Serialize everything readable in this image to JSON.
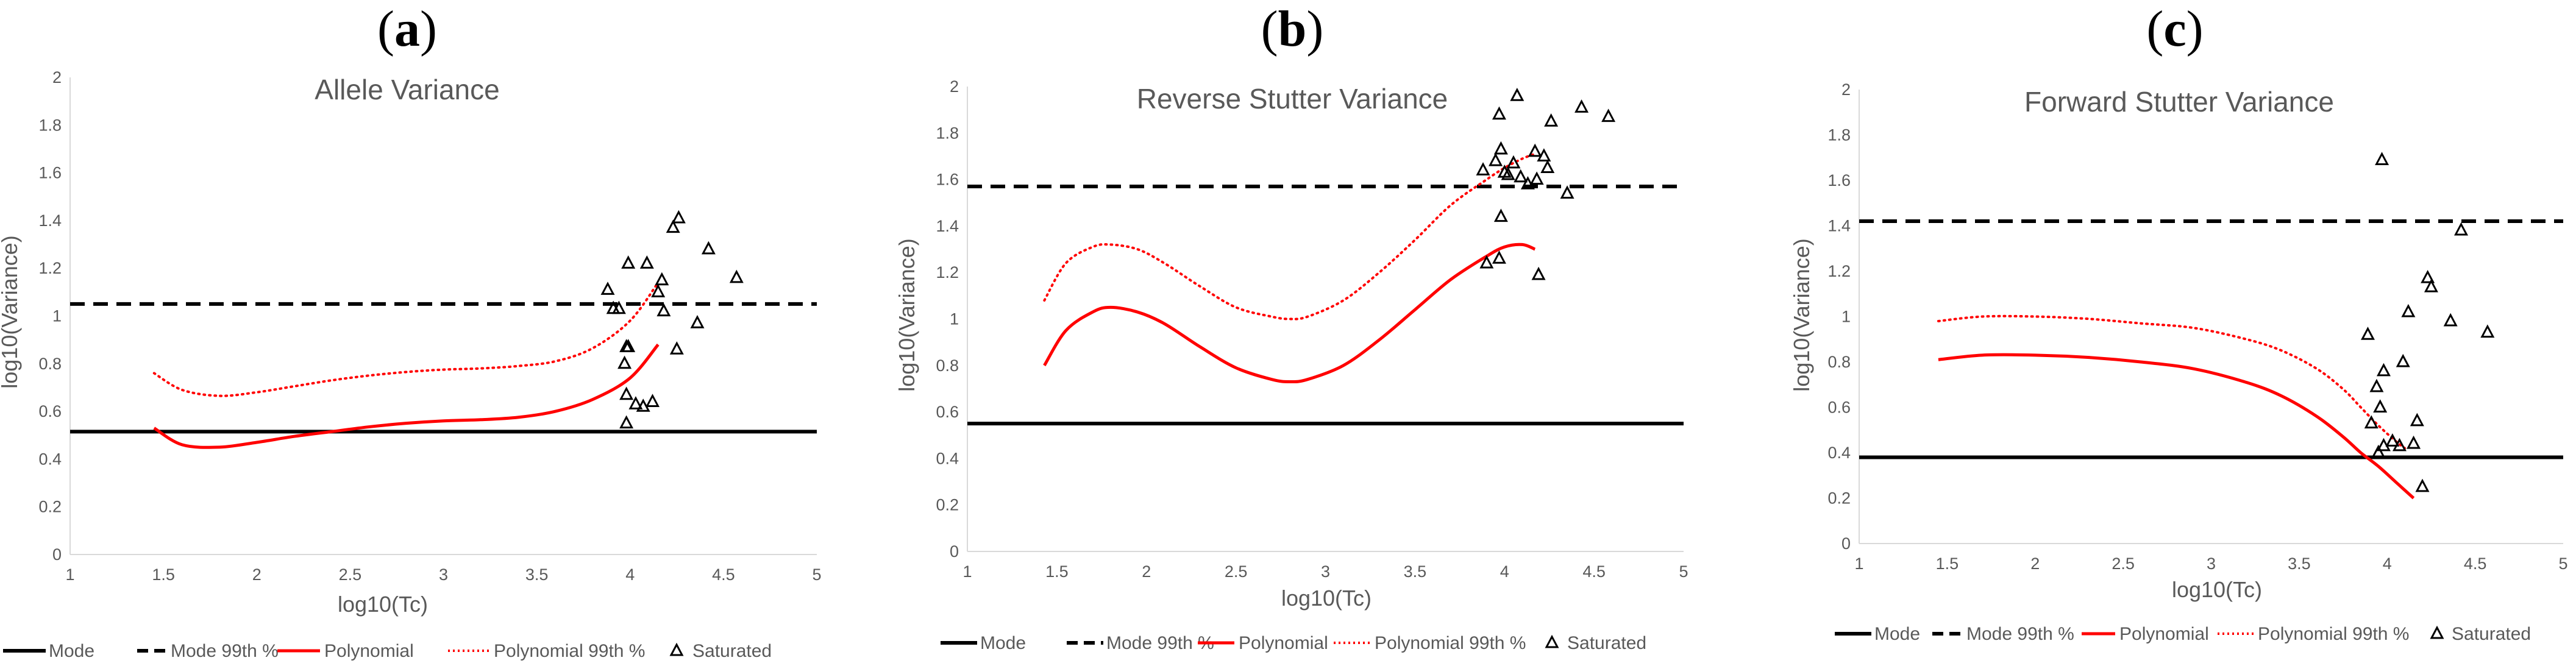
{
  "panels": [
    {
      "label": "(a)",
      "label_letter": "a",
      "chart_data": {
        "type": "line",
        "title": "Allele Variance",
        "xlabel": "log10(Tc)",
        "ylabel": "log10(Variance)",
        "xlim": [
          1,
          5
        ],
        "ylim": [
          0,
          2
        ],
        "xticks": [
          "1",
          "1.5",
          "2",
          "2.5",
          "3",
          "3.5",
          "4",
          "4.5",
          "5"
        ],
        "yticks": [
          "0",
          "0.2",
          "0.4",
          "0.6",
          "0.8",
          "1",
          "1.2",
          "1.4",
          "1.6",
          "1.8",
          "2"
        ],
        "series": [
          {
            "name": "Mode",
            "kind": "hline",
            "y": 0.515
          },
          {
            "name": "Mode 99th %",
            "kind": "hline",
            "y": 1.05
          },
          {
            "name": "Polynomial",
            "kind": "curve",
            "x": [
              1.45,
              1.6,
              1.8,
              2.0,
              2.2,
              2.4,
              2.6,
              2.8,
              3.0,
              3.2,
              3.4,
              3.6,
              3.8,
              4.0,
              4.15
            ],
            "y": [
              0.53,
              0.46,
              0.45,
              0.47,
              0.495,
              0.515,
              0.535,
              0.55,
              0.56,
              0.565,
              0.575,
              0.6,
              0.65,
              0.74,
              0.88
            ]
          },
          {
            "name": "Polynomial 99th %",
            "kind": "curve",
            "x": [
              1.45,
              1.6,
              1.8,
              2.0,
              2.2,
              2.4,
              2.6,
              2.8,
              3.0,
              3.2,
              3.4,
              3.6,
              3.8,
              4.0,
              4.15
            ],
            "y": [
              0.76,
              0.69,
              0.665,
              0.68,
              0.705,
              0.73,
              0.75,
              0.765,
              0.775,
              0.78,
              0.79,
              0.81,
              0.865,
              0.98,
              1.14
            ]
          },
          {
            "name": "Saturated",
            "kind": "scatter",
            "x": [
              3.88,
              3.91,
              3.94,
              3.97,
              3.98,
              3.98,
              3.99,
              3.98,
              4.03,
              4.07,
              4.09,
              4.12,
              4.15,
              4.17,
              4.23,
              4.25,
              4.26,
              4.36,
              4.42,
              4.57,
              3.99,
              4.18
            ],
            "y": [
              1.11,
              1.03,
              1.03,
              0.8,
              0.87,
              0.67,
              1.22,
              0.55,
              0.63,
              0.62,
              1.22,
              0.64,
              1.1,
              1.15,
              1.37,
              0.86,
              1.41,
              0.97,
              1.28,
              1.16,
              0.87,
              1.02
            ]
          }
        ]
      }
    },
    {
      "label": "(b)",
      "label_letter": "b",
      "chart_data": {
        "type": "line",
        "title": "Reverse Stutter Variance",
        "xlabel": "log10(Tc)",
        "ylabel": "log10(Variance)",
        "xlim": [
          1,
          5
        ],
        "ylim": [
          0,
          2
        ],
        "xticks": [
          "1",
          "1.5",
          "2",
          "2.5",
          "3",
          "3.5",
          "4",
          "4.5",
          "5"
        ],
        "yticks": [
          "0",
          "0.2",
          "0.4",
          "0.6",
          "0.8",
          "1",
          "1.2",
          "1.4",
          "1.6",
          "1.8",
          "2"
        ],
        "series": [
          {
            "name": "Mode",
            "kind": "hline",
            "y": 0.55
          },
          {
            "name": "Mode 99th %",
            "kind": "hline",
            "y": 1.57
          },
          {
            "name": "Polynomial",
            "kind": "curve",
            "x": [
              1.43,
              1.55,
              1.7,
              1.8,
              1.95,
              2.1,
              2.3,
              2.5,
              2.7,
              2.8,
              2.9,
              3.1,
              3.3,
              3.5,
              3.7,
              3.9,
              4.0,
              4.1,
              4.17
            ],
            "y": [
              0.8,
              0.95,
              1.03,
              1.05,
              1.03,
              0.98,
              0.88,
              0.79,
              0.74,
              0.73,
              0.74,
              0.8,
              0.91,
              1.04,
              1.17,
              1.27,
              1.31,
              1.32,
              1.3
            ]
          },
          {
            "name": "Polynomial 99th %",
            "kind": "curve",
            "x": [
              1.43,
              1.55,
              1.7,
              1.8,
              1.95,
              2.1,
              2.3,
              2.5,
              2.7,
              2.8,
              2.9,
              3.1,
              3.3,
              3.5,
              3.7,
              3.9,
              4.0,
              4.1,
              4.17
            ],
            "y": [
              1.08,
              1.24,
              1.31,
              1.32,
              1.3,
              1.24,
              1.14,
              1.05,
              1.01,
              1.0,
              1.01,
              1.08,
              1.2,
              1.34,
              1.49,
              1.6,
              1.65,
              1.69,
              1.71
            ]
          },
          {
            "name": "Saturated",
            "kind": "scatter",
            "x": [
              3.88,
              3.95,
              3.97,
              3.98,
              4.0,
              4.02,
              4.07,
              4.09,
              4.13,
              4.17,
              4.19,
              4.22,
              4.24,
              4.26,
              4.35,
              4.43,
              4.58,
              3.9,
              3.97,
              3.98,
              4.05,
              4.18
            ],
            "y": [
              1.64,
              1.68,
              1.88,
              1.73,
              1.63,
              1.62,
              1.96,
              1.61,
              1.58,
              1.72,
              1.19,
              1.7,
              1.65,
              1.85,
              1.54,
              1.91,
              1.87,
              1.24,
              1.26,
              1.44,
              1.67,
              1.6
            ]
          }
        ]
      }
    },
    {
      "label": "(c)",
      "label_letter": "c",
      "chart_data": {
        "type": "line",
        "title": "Forward Stutter Variance",
        "xlabel": "log10(Tc)",
        "ylabel": "log10(Variance)",
        "xlim": [
          1,
          5
        ],
        "ylim": [
          0,
          2
        ],
        "xticks": [
          "1",
          "1.5",
          "2",
          "2.5",
          "3",
          "3.5",
          "4",
          "4.5",
          "5"
        ],
        "yticks": [
          "0",
          "0.2",
          "0.4",
          "0.6",
          "0.8",
          "1",
          "1.2",
          "1.4",
          "1.6",
          "1.8",
          "2"
        ],
        "series": [
          {
            "name": "Mode",
            "kind": "hline",
            "y": 0.38
          },
          {
            "name": "Mode 99th %",
            "kind": "hline",
            "y": 1.42
          },
          {
            "name": "Polynomial",
            "kind": "curve",
            "x": [
              1.45,
              1.7,
              2.0,
              2.3,
              2.6,
              2.9,
              3.2,
              3.4,
              3.6,
              3.75,
              3.85,
              3.95,
              4.05,
              4.15
            ],
            "y": [
              0.81,
              0.83,
              0.83,
              0.82,
              0.8,
              0.77,
              0.71,
              0.65,
              0.56,
              0.47,
              0.4,
              0.34,
              0.27,
              0.2
            ]
          },
          {
            "name": "Polynomial 99th %",
            "kind": "curve",
            "x": [
              1.45,
              1.7,
              2.0,
              2.3,
              2.6,
              2.9,
              3.2,
              3.4,
              3.6,
              3.75,
              3.85,
              3.95,
              4.05,
              4.1
            ],
            "y": [
              0.98,
              1.0,
              1.0,
              0.99,
              0.97,
              0.95,
              0.9,
              0.85,
              0.77,
              0.68,
              0.6,
              0.52,
              0.45,
              0.42
            ]
          },
          {
            "name": "Saturated",
            "kind": "scatter",
            "x": [
              3.89,
              3.91,
              3.94,
              3.96,
              3.97,
              3.98,
              3.98,
              4.03,
              4.07,
              4.09,
              4.12,
              4.17,
              4.2,
              4.23,
              4.25,
              4.36,
              4.42,
              4.57,
              3.95,
              4.15
            ],
            "y": [
              0.92,
              0.53,
              0.69,
              0.6,
              1.69,
              0.76,
              0.43,
              0.45,
              0.43,
              0.8,
              1.02,
              0.54,
              0.25,
              1.17,
              1.13,
              0.98,
              1.38,
              0.93,
              0.4,
              0.44
            ]
          }
        ]
      }
    }
  ],
  "legend": {
    "mode": "Mode",
    "mode99": "Mode 99th %",
    "poly": "Polynomial",
    "poly99": "Polynomial 99th %",
    "saturated": "Saturated"
  },
  "colors": {
    "mode": "#000000",
    "polynomial": "#ff0000",
    "axis": "#d9d9d9",
    "text": "#595959"
  }
}
